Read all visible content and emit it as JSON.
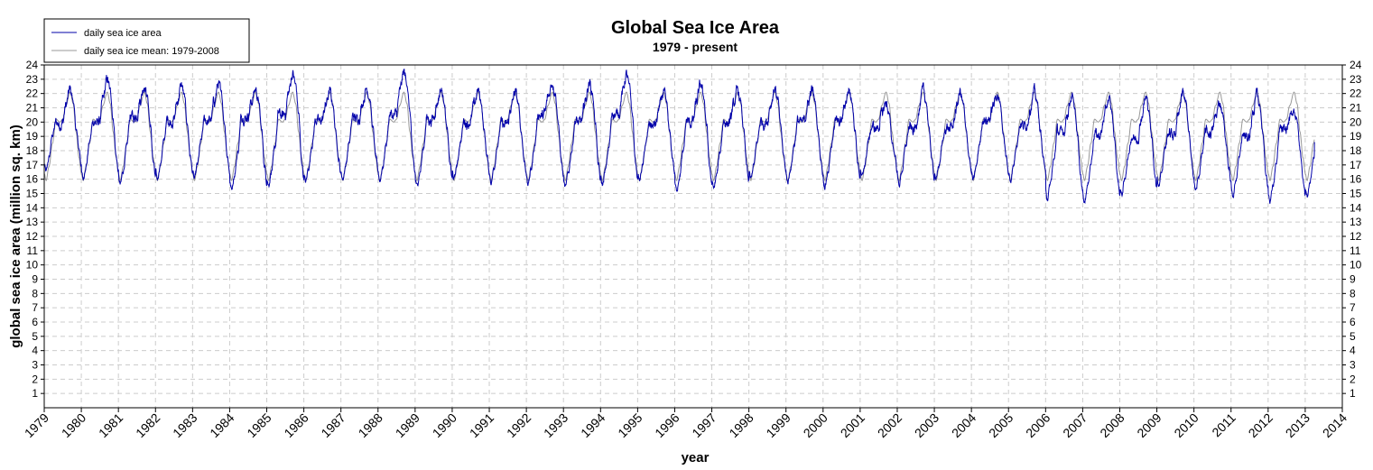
{
  "chart_data": {
    "type": "line",
    "title": "Global Sea Ice Area",
    "subtitle": "1979 - present",
    "xlabel": "year",
    "ylabel": "global sea ice area (million sq. km)",
    "xlim": [
      1979,
      2014
    ],
    "ylim": [
      0,
      24
    ],
    "x_ticks": [
      "1979",
      "1980",
      "1981",
      "1982",
      "1983",
      "1984",
      "1985",
      "1986",
      "1987",
      "1988",
      "1989",
      "1990",
      "1991",
      "1992",
      "1993",
      "1994",
      "1995",
      "1996",
      "1997",
      "1998",
      "1999",
      "2000",
      "2001",
      "2002",
      "2003",
      "2004",
      "2005",
      "2006",
      "2007",
      "2008",
      "2009",
      "2010",
      "2011",
      "2012",
      "2013",
      "2014"
    ],
    "y_ticks": [
      1,
      2,
      3,
      4,
      5,
      6,
      7,
      8,
      9,
      10,
      11,
      12,
      13,
      14,
      15,
      16,
      17,
      18,
      19,
      20,
      21,
      22,
      23,
      24
    ],
    "grid": true,
    "legend_position": "top-left",
    "series": [
      {
        "name": "daily sea ice area",
        "color": "#0000aa",
        "annual_max": [
          22.3,
          23.0,
          22.6,
          22.6,
          22.7,
          22.3,
          23.4,
          22.1,
          22.4,
          23.5,
          22.3,
          22.2,
          22.1,
          22.8,
          22.8,
          23.3,
          22.1,
          22.6,
          22.2,
          22.4,
          22.3,
          22.3,
          21.4,
          22.2,
          22.1,
          22.0,
          22.1,
          21.8,
          21.6,
          21.7,
          22.2,
          21.4,
          21.9,
          20.9,
          21.1
        ],
        "annual_min": [
          16.5,
          16.0,
          15.6,
          16.0,
          16.0,
          15.3,
          15.6,
          15.8,
          16.0,
          15.9,
          15.5,
          16.0,
          15.8,
          15.7,
          15.4,
          15.6,
          15.9,
          15.2,
          15.3,
          16.0,
          15.8,
          15.5,
          16.1,
          15.6,
          16.0,
          15.9,
          15.9,
          14.7,
          14.5,
          14.9,
          15.6,
          15.2,
          14.9,
          14.5,
          14.8
        ],
        "winter_level": [
          20.0,
          20.1,
          20.5,
          20.2,
          20.2,
          20.5,
          20.6,
          20.2,
          20.4,
          20.6,
          20.3,
          20.1,
          19.9,
          20.6,
          20.1,
          20.7,
          19.9,
          20.1,
          20.1,
          20.1,
          20.1,
          20.1,
          19.7,
          19.6,
          19.7,
          20.3,
          19.9,
          19.4,
          19.2,
          19.0,
          19.3,
          19.4,
          19.1,
          19.5,
          18.6
        ]
      },
      {
        "name": "daily sea ice mean: 1979-2008",
        "color": "#999999",
        "annual_max": 22.1,
        "annual_min": 15.9,
        "winter_level": 20.2
      }
    ],
    "last_value": {
      "x": 2013.25,
      "y": 18.6
    }
  }
}
